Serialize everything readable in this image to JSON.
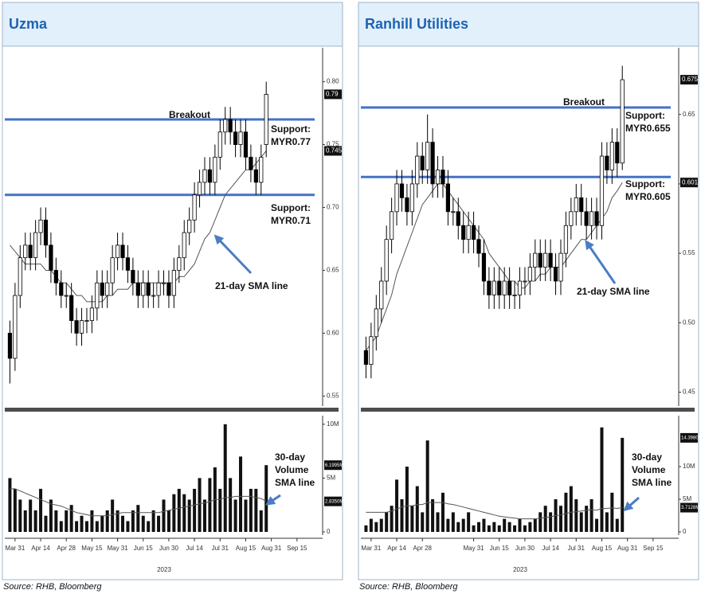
{
  "chart_data": [
    {
      "type": "candlestick",
      "title": "Uzma",
      "source": "Source: RHB, Bloomberg",
      "xlabel": "2023",
      "x": [
        -2,
        0,
        2,
        4,
        6,
        8,
        10,
        12,
        14,
        16,
        18,
        20,
        22,
        24,
        26,
        28,
        30,
        32,
        34,
        36,
        38,
        40,
        42,
        44,
        46,
        48,
        50,
        52,
        54,
        56,
        58,
        60,
        62,
        64,
        66,
        68,
        70,
        72,
        74,
        76,
        78,
        80,
        82,
        84,
        86,
        88,
        90,
        92,
        94,
        96,
        98
      ],
      "open": [
        0.6,
        0.58,
        0.63,
        0.66,
        0.67,
        0.66,
        0.68,
        0.69,
        0.67,
        0.65,
        0.64,
        0.63,
        0.63,
        0.61,
        0.6,
        0.61,
        0.61,
        0.62,
        0.64,
        0.63,
        0.64,
        0.66,
        0.67,
        0.66,
        0.65,
        0.64,
        0.63,
        0.64,
        0.63,
        0.63,
        0.64,
        0.64,
        0.63,
        0.65,
        0.66,
        0.68,
        0.69,
        0.71,
        0.72,
        0.73,
        0.72,
        0.74,
        0.76,
        0.77,
        0.76,
        0.75,
        0.76,
        0.74,
        0.73,
        0.72,
        0.75
      ],
      "high": [
        0.61,
        0.64,
        0.67,
        0.68,
        0.68,
        0.69,
        0.7,
        0.7,
        0.68,
        0.66,
        0.65,
        0.64,
        0.64,
        0.62,
        0.62,
        0.62,
        0.63,
        0.65,
        0.65,
        0.65,
        0.67,
        0.68,
        0.68,
        0.67,
        0.66,
        0.65,
        0.65,
        0.65,
        0.64,
        0.65,
        0.65,
        0.65,
        0.66,
        0.67,
        0.69,
        0.7,
        0.72,
        0.73,
        0.74,
        0.74,
        0.75,
        0.77,
        0.78,
        0.78,
        0.77,
        0.77,
        0.77,
        0.75,
        0.74,
        0.75,
        0.8
      ],
      "low": [
        0.56,
        0.57,
        0.62,
        0.65,
        0.65,
        0.65,
        0.67,
        0.66,
        0.64,
        0.63,
        0.62,
        0.62,
        0.6,
        0.59,
        0.59,
        0.6,
        0.6,
        0.61,
        0.62,
        0.62,
        0.63,
        0.65,
        0.65,
        0.64,
        0.63,
        0.62,
        0.62,
        0.62,
        0.62,
        0.62,
        0.63,
        0.62,
        0.62,
        0.64,
        0.65,
        0.67,
        0.68,
        0.7,
        0.71,
        0.71,
        0.71,
        0.73,
        0.75,
        0.75,
        0.74,
        0.74,
        0.73,
        0.72,
        0.71,
        0.71,
        0.74
      ],
      "close": [
        0.58,
        0.63,
        0.66,
        0.67,
        0.66,
        0.68,
        0.69,
        0.67,
        0.65,
        0.64,
        0.63,
        0.63,
        0.61,
        0.6,
        0.61,
        0.61,
        0.62,
        0.64,
        0.63,
        0.64,
        0.66,
        0.67,
        0.66,
        0.65,
        0.64,
        0.63,
        0.64,
        0.63,
        0.63,
        0.64,
        0.64,
        0.63,
        0.65,
        0.66,
        0.68,
        0.69,
        0.71,
        0.72,
        0.73,
        0.72,
        0.74,
        0.76,
        0.77,
        0.76,
        0.75,
        0.76,
        0.74,
        0.73,
        0.72,
        0.74,
        0.79
      ],
      "sma": [
        0.67,
        0.665,
        0.66,
        0.655,
        0.655,
        0.655,
        0.655,
        0.65,
        0.65,
        0.645,
        0.64,
        0.64,
        0.635,
        0.63,
        0.63,
        0.625,
        0.625,
        0.625,
        0.625,
        0.63,
        0.63,
        0.635,
        0.635,
        0.635,
        0.64,
        0.64,
        0.64,
        0.64,
        0.64,
        0.64,
        0.64,
        0.64,
        0.64,
        0.645,
        0.645,
        0.65,
        0.655,
        0.665,
        0.675,
        0.68,
        0.69,
        0.7,
        0.71,
        0.715,
        0.72,
        0.725,
        0.73,
        0.73,
        0.735,
        0.74,
        0.745
      ],
      "volume": [
        5,
        4,
        3,
        2,
        3,
        2,
        4,
        1.5,
        3,
        2,
        1,
        2,
        2.5,
        1,
        1.5,
        1,
        2,
        1,
        1.5,
        2,
        3,
        2,
        1.5,
        1,
        2,
        2.5,
        1.5,
        1,
        2,
        1.5,
        3,
        2,
        3.5,
        4,
        3.5,
        3,
        4,
        5,
        3,
        5,
        6,
        4,
        10,
        5,
        3,
        7,
        3,
        4,
        4,
        2,
        6.1995
      ],
      "volume_sma": [
        4,
        4,
        3.8,
        3.6,
        3.4,
        3.2,
        3,
        2.8,
        2.6,
        2.5,
        2.4,
        2.2,
        2,
        1.8,
        1.7,
        1.6,
        1.5,
        1.5,
        1.5,
        1.5,
        1.6,
        1.7,
        1.8,
        1.8,
        1.8,
        1.8,
        1.8,
        1.8,
        1.8,
        1.8,
        1.9,
        2,
        2.1,
        2.2,
        2.3,
        2.4,
        2.5,
        2.6,
        2.7,
        2.8,
        3,
        3,
        3.2,
        3.2,
        3.3,
        3.3,
        3.3,
        3.3,
        3.2,
        3.1,
        2.835
      ],
      "xlim": [
        -4,
        120
      ],
      "xticks": [
        {
          "value": 0,
          "label": "Mar 31"
        },
        {
          "value": 10,
          "label": "Apr 14"
        },
        {
          "value": 20,
          "label": "Apr 28"
        },
        {
          "value": 30,
          "label": "May 15"
        },
        {
          "value": 40,
          "label": "May 31"
        },
        {
          "value": 50,
          "label": "Jun 15"
        },
        {
          "value": 60,
          "label": "Jun 30"
        },
        {
          "value": 70,
          "label": "Jul 14"
        },
        {
          "value": 80,
          "label": "Jul 31"
        },
        {
          "value": 90,
          "label": "Aug 15"
        },
        {
          "value": 100,
          "label": "Aug 31"
        },
        {
          "value": 110,
          "label": "Sep 15"
        }
      ],
      "ylim": [
        0.542,
        0.827
      ],
      "yticks": [
        {
          "value": 0.8,
          "label": "0.80"
        },
        0.75,
        {
          "value": 0.7,
          "label": "0.70"
        },
        0.65,
        {
          "value": 0.6,
          "label": "0.60"
        },
        0.55
      ],
      "price_markers": [
        0.79,
        0.745
      ],
      "levels": [
        0.77,
        0.71
      ],
      "volume_ylim": [
        0,
        10.8
      ],
      "volume_yticks": [
        {
          "value": 10,
          "label": "10M"
        },
        {
          "value": 5,
          "label": "5M"
        },
        0
      ],
      "volume_markers": [
        {
          "value": 6.1995,
          "label": "6.1995M"
        },
        {
          "value": 2.835,
          "label": "2.8350M"
        }
      ],
      "annotations": [
        {
          "text": [
            "Breakout"
          ]
        },
        {
          "text": [
            "Support:",
            "MYR0.77"
          ]
        },
        {
          "text": [
            "Support:",
            "MYR0.71"
          ]
        },
        {
          "text": [
            "21-day SMA line"
          ]
        },
        {
          "text": [
            "30-day",
            "Volume",
            "SMA line"
          ]
        }
      ],
      "level_color": "#4472c4",
      "up_color": "#ffffff",
      "down_color": "#000000",
      "sma_color": "#555555"
    },
    {
      "type": "candlestick",
      "title": "Ranhill Utilities",
      "source": "Source: RHB, Bloomberg",
      "xlabel": "2023",
      "x": [
        -2,
        0,
        2,
        4,
        6,
        8,
        10,
        12,
        14,
        16,
        18,
        20,
        22,
        24,
        26,
        28,
        30,
        32,
        34,
        36,
        38,
        40,
        42,
        44,
        46,
        48,
        50,
        52,
        54,
        56,
        58,
        60,
        62,
        64,
        66,
        68,
        70,
        72,
        74,
        76,
        78,
        80,
        82,
        84,
        86,
        88,
        90,
        92,
        94,
        96,
        98
      ],
      "open": [
        0.48,
        0.47,
        0.49,
        0.51,
        0.53,
        0.56,
        0.58,
        0.6,
        0.59,
        0.58,
        0.6,
        0.62,
        0.61,
        0.63,
        0.6,
        0.61,
        0.6,
        0.58,
        0.58,
        0.57,
        0.56,
        0.57,
        0.56,
        0.55,
        0.53,
        0.52,
        0.53,
        0.52,
        0.53,
        0.52,
        0.52,
        0.53,
        0.53,
        0.54,
        0.55,
        0.54,
        0.55,
        0.54,
        0.53,
        0.55,
        0.57,
        0.58,
        0.59,
        0.58,
        0.57,
        0.58,
        0.57,
        0.62,
        0.61,
        0.63,
        0.615
      ],
      "high": [
        0.49,
        0.5,
        0.52,
        0.54,
        0.57,
        0.59,
        0.61,
        0.61,
        0.6,
        0.61,
        0.63,
        0.63,
        0.65,
        0.64,
        0.62,
        0.62,
        0.61,
        0.59,
        0.59,
        0.58,
        0.58,
        0.58,
        0.57,
        0.56,
        0.54,
        0.54,
        0.54,
        0.54,
        0.54,
        0.53,
        0.54,
        0.54,
        0.55,
        0.56,
        0.56,
        0.56,
        0.56,
        0.55,
        0.56,
        0.58,
        0.59,
        0.6,
        0.6,
        0.59,
        0.59,
        0.59,
        0.63,
        0.63,
        0.64,
        0.64,
        0.685
      ],
      "low": [
        0.46,
        0.46,
        0.48,
        0.5,
        0.52,
        0.55,
        0.57,
        0.58,
        0.57,
        0.57,
        0.59,
        0.6,
        0.6,
        0.59,
        0.59,
        0.59,
        0.57,
        0.57,
        0.56,
        0.55,
        0.55,
        0.55,
        0.54,
        0.52,
        0.51,
        0.51,
        0.51,
        0.51,
        0.51,
        0.51,
        0.51,
        0.52,
        0.52,
        0.53,
        0.53,
        0.53,
        0.53,
        0.52,
        0.52,
        0.54,
        0.56,
        0.57,
        0.57,
        0.56,
        0.56,
        0.56,
        0.56,
        0.6,
        0.6,
        0.605,
        0.61
      ],
      "close": [
        0.47,
        0.49,
        0.51,
        0.53,
        0.56,
        0.58,
        0.6,
        0.59,
        0.58,
        0.6,
        0.62,
        0.61,
        0.63,
        0.6,
        0.61,
        0.6,
        0.58,
        0.58,
        0.57,
        0.56,
        0.57,
        0.56,
        0.55,
        0.53,
        0.52,
        0.53,
        0.52,
        0.53,
        0.52,
        0.52,
        0.53,
        0.53,
        0.54,
        0.55,
        0.54,
        0.55,
        0.54,
        0.53,
        0.55,
        0.57,
        0.58,
        0.59,
        0.58,
        0.57,
        0.58,
        0.57,
        0.62,
        0.61,
        0.63,
        0.615,
        0.675
      ],
      "sma": [
        0.48,
        0.485,
        0.49,
        0.5,
        0.51,
        0.52,
        0.535,
        0.545,
        0.555,
        0.565,
        0.575,
        0.585,
        0.59,
        0.595,
        0.6,
        0.6,
        0.595,
        0.59,
        0.585,
        0.58,
        0.575,
        0.57,
        0.565,
        0.56,
        0.55,
        0.545,
        0.54,
        0.535,
        0.53,
        0.53,
        0.525,
        0.525,
        0.53,
        0.53,
        0.535,
        0.535,
        0.54,
        0.54,
        0.54,
        0.545,
        0.55,
        0.555,
        0.56,
        0.56,
        0.565,
        0.57,
        0.575,
        0.58,
        0.59,
        0.595,
        0.601
      ],
      "volume": [
        1,
        2,
        1.5,
        2,
        3,
        4,
        8,
        5,
        10,
        4,
        7,
        3,
        14,
        5,
        3,
        6,
        2,
        3,
        1.5,
        2,
        3,
        1,
        1.5,
        2,
        1,
        1.5,
        1,
        2,
        1.5,
        1,
        2,
        1,
        1.5,
        2,
        3,
        4,
        3,
        5,
        4,
        6,
        7,
        5,
        3,
        4,
        5,
        2,
        16,
        3,
        6,
        2,
        14.398
      ],
      "volume_sma": [
        3,
        3,
        3,
        3,
        3,
        3.2,
        3.5,
        3.8,
        4,
        4,
        4.2,
        4.2,
        4.5,
        4.5,
        4.5,
        4.5,
        4.3,
        4.2,
        4,
        3.8,
        3.6,
        3.4,
        3.2,
        3,
        2.8,
        2.6,
        2.4,
        2.3,
        2.2,
        2.1,
        2,
        2,
        2,
        2,
        2.1,
        2.2,
        2.3,
        2.5,
        2.6,
        2.8,
        3,
        3.1,
        3.2,
        3.3,
        3.4,
        3.3,
        3.6,
        3.6,
        3.7,
        3.6,
        3.7128
      ],
      "xlim": [
        -4,
        120
      ],
      "xticks": [
        {
          "value": 0,
          "label": "Mar 31"
        },
        {
          "value": 10,
          "label": "Apr 14"
        },
        {
          "value": 20,
          "label": "Apr 28"
        },
        {
          "value": 40,
          "label": "May 31"
        },
        {
          "value": 50,
          "label": "Jun 15"
        },
        {
          "value": 60,
          "label": "Jun 30"
        },
        {
          "value": 70,
          "label": "Jul 14"
        },
        {
          "value": 80,
          "label": "Jul 31"
        },
        {
          "value": 90,
          "label": "Aug 15"
        },
        {
          "value": 100,
          "label": "Aug 31"
        },
        {
          "value": 110,
          "label": "Sep 15"
        }
      ],
      "ylim": [
        0.44,
        0.698
      ],
      "yticks": [
        0.65,
        {
          "value": 0.6,
          "label": "0.60"
        },
        0.55,
        {
          "value": 0.5,
          "label": "0.50"
        },
        0.45
      ],
      "price_markers": [
        0.675,
        0.601
      ],
      "levels": [
        0.655,
        0.605
      ],
      "volume_ylim": [
        0,
        17.8
      ],
      "volume_yticks": [
        {
          "value": 10,
          "label": "10M"
        },
        {
          "value": 5,
          "label": "5M"
        },
        0
      ],
      "volume_markers": [
        {
          "value": 14.398,
          "label": "14.3980M"
        },
        {
          "value": 3.7128,
          "label": "3.7128M"
        }
      ],
      "annotations": [
        {
          "text": [
            "Breakout"
          ]
        },
        {
          "text": [
            "Support:",
            "MYR0.655"
          ]
        },
        {
          "text": [
            "Support:",
            "MYR0.605"
          ]
        },
        {
          "text": [
            "21-day SMA line"
          ]
        },
        {
          "text": [
            "30-day",
            "Volume",
            "SMA line"
          ]
        }
      ],
      "level_color": "#4472c4",
      "up_color": "#ffffff",
      "down_color": "#000000",
      "sma_color": "#555555"
    }
  ]
}
